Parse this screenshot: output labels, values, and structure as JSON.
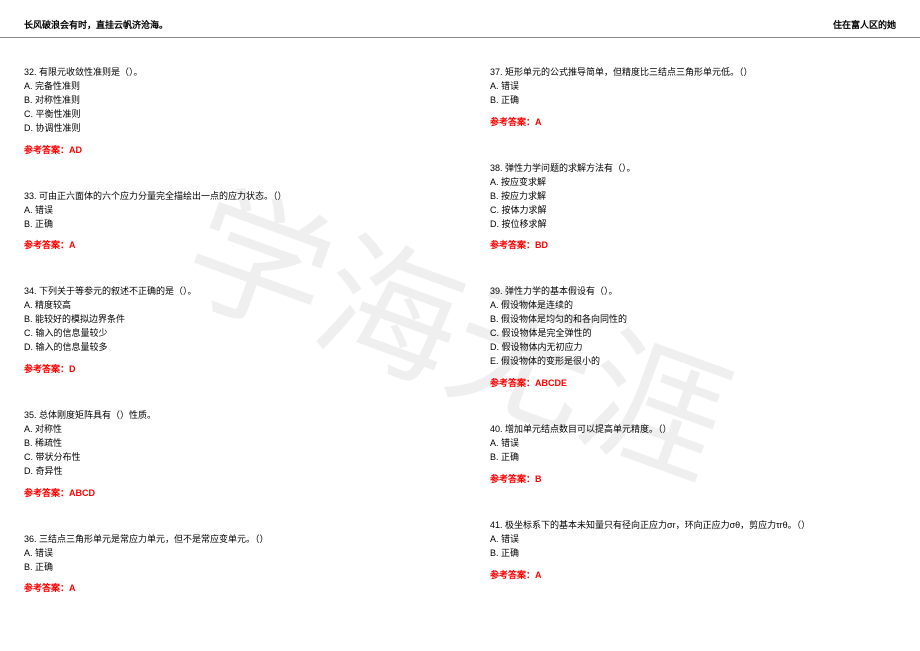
{
  "header": {
    "left": "长风破浪会有时，直挂云帆济沧海。",
    "right": "住在富人区的她"
  },
  "watermark": "学海无涯",
  "left_questions": [
    {
      "num": "32",
      "text": "有限元收敛性准则是（）。",
      "options": [
        "A. 完备性准则",
        "B. 对称性准则",
        "C. 平衡性准则",
        "D. 协调性准则"
      ],
      "answer_label": "参考答案：",
      "answer": "AD"
    },
    {
      "num": "33",
      "text": "可由正六面体的六个应力分量完全描绘出一点的应力状态。（）",
      "options": [
        "A. 错误",
        "B. 正确"
      ],
      "answer_label": "参考答案：",
      "answer": "A"
    },
    {
      "num": "34",
      "text": "下列关于等参元的叙述不正确的是（）。",
      "options": [
        "A. 精度较高",
        "B. 能较好的模拟边界条件",
        "C. 输入的信息量较少",
        "D. 输入的信息量较多"
      ],
      "answer_label": "参考答案：",
      "answer": "D"
    },
    {
      "num": "35",
      "text": "总体刚度矩阵具有（）性质。",
      "options": [
        "A. 对称性",
        "B. 稀疏性",
        "C. 带状分布性",
        "D. 奇异性"
      ],
      "answer_label": "参考答案：",
      "answer": "ABCD"
    },
    {
      "num": "36",
      "text": "三结点三角形单元是常应力单元，但不是常应变单元。（）",
      "options": [
        "A. 错误",
        "B. 正确"
      ],
      "answer_label": "参考答案：",
      "answer": "A"
    }
  ],
  "right_questions": [
    {
      "num": "37",
      "text": "矩形单元的公式推导简单，但精度比三结点三角形单元低。（）",
      "options": [
        "A. 错误",
        "B. 正确"
      ],
      "answer_label": "参考答案：",
      "answer": "A"
    },
    {
      "num": "38",
      "text": "弹性力学问题的求解方法有（）。",
      "options": [
        "A. 按应变求解",
        "B. 按应力求解",
        "C. 按体力求解",
        "D. 按位移求解"
      ],
      "answer_label": "参考答案：",
      "answer": "BD"
    },
    {
      "num": "39",
      "text": "弹性力学的基本假设有（）。",
      "options": [
        "A. 假设物体是连续的",
        "B. 假设物体是均匀的和各向同性的",
        "C. 假设物体是完全弹性的",
        "D. 假设物体内无初应力",
        "E. 假设物体的变形是很小的"
      ],
      "answer_label": "参考答案：",
      "answer": "ABCDE"
    },
    {
      "num": "40",
      "text": "增加单元结点数目可以提高单元精度。（）",
      "options": [
        "A. 错误",
        "B. 正确"
      ],
      "answer_label": "参考答案：",
      "answer": "B"
    },
    {
      "num": "41",
      "text": "极坐标系下的基本未知量只有径向正应力σr，环向正应力σθ，剪应力τrθ。（）",
      "options": [
        "A. 错误",
        "B. 正确"
      ],
      "answer_label": "参考答案：",
      "answer": "A"
    }
  ]
}
